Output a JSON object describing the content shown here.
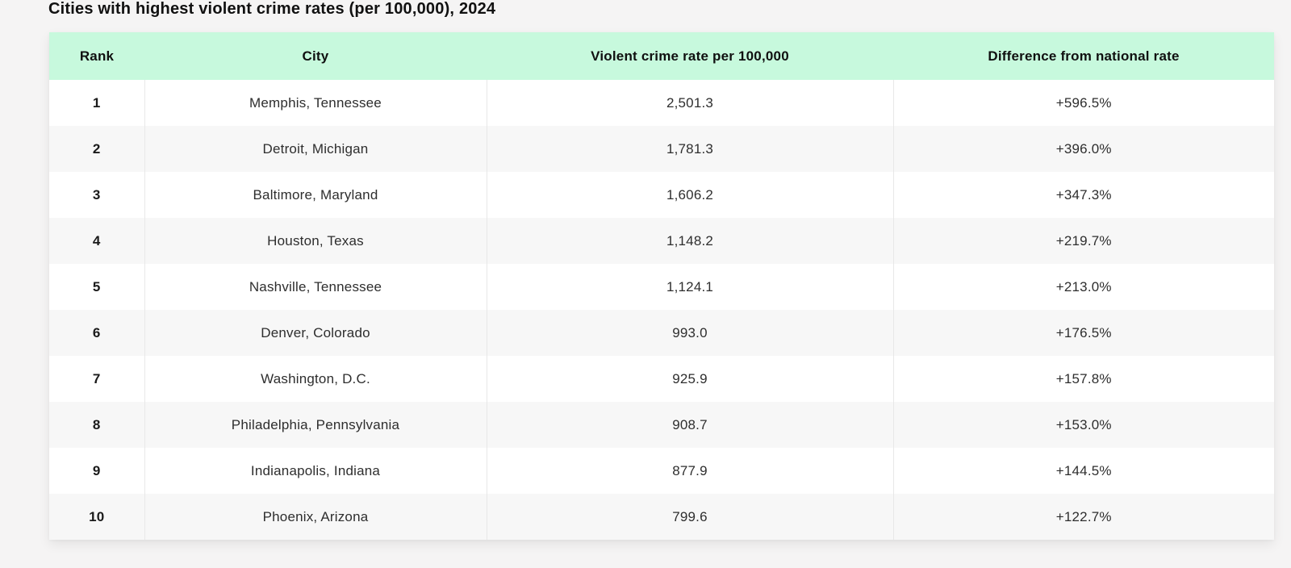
{
  "page": {
    "title": "Cities with highest violent crime rates (per 100,000), 2024"
  },
  "table": {
    "columns": [
      "Rank",
      "City",
      "Violent crime rate per 100,000",
      "Difference from national rate"
    ],
    "rows": [
      {
        "rank": "1",
        "city": "Memphis, Tennessee",
        "rate": "2,501.3",
        "diff": "+596.5%"
      },
      {
        "rank": "2",
        "city": "Detroit, Michigan",
        "rate": "1,781.3",
        "diff": "+396.0%"
      },
      {
        "rank": "3",
        "city": "Baltimore, Maryland",
        "rate": "1,606.2",
        "diff": "+347.3%"
      },
      {
        "rank": "4",
        "city": "Houston, Texas",
        "rate": "1,148.2",
        "diff": "+219.7%"
      },
      {
        "rank": "5",
        "city": "Nashville, Tennessee",
        "rate": "1,124.1",
        "diff": "+213.0%"
      },
      {
        "rank": "6",
        "city": "Denver, Colorado",
        "rate": "993.0",
        "diff": "+176.5%"
      },
      {
        "rank": "7",
        "city": "Washington, D.C.",
        "rate": "925.9",
        "diff": "+157.8%"
      },
      {
        "rank": "8",
        "city": "Philadelphia, Pennsylvania",
        "rate": "908.7",
        "diff": "+153.0%"
      },
      {
        "rank": "9",
        "city": "Indianapolis, Indiana",
        "rate": "877.9",
        "diff": "+144.5%"
      },
      {
        "rank": "10",
        "city": "Phoenix, Arizona",
        "rate": "799.6",
        "diff": "+122.7%"
      }
    ]
  },
  "colors": {
    "header_bg": "#c7f9dd",
    "row_even_bg": "#f7f7f7",
    "row_odd_bg": "#ffffff",
    "page_bg": "#f5f4f4",
    "divider": "#e8e8e8",
    "text": "#2e2e2e",
    "title_text": "#111111"
  },
  "chart_data": {
    "type": "table",
    "title": "Cities with highest violent crime rates (per 100,000), 2024",
    "columns": [
      "Rank",
      "City",
      "Violent crime rate per 100,000",
      "Difference from national rate"
    ],
    "rows": [
      [
        1,
        "Memphis, Tennessee",
        2501.3,
        "+596.5%"
      ],
      [
        2,
        "Detroit, Michigan",
        1781.3,
        "+396.0%"
      ],
      [
        3,
        "Baltimore, Maryland",
        1606.2,
        "+347.3%"
      ],
      [
        4,
        "Houston, Texas",
        1148.2,
        "+219.7%"
      ],
      [
        5,
        "Nashville, Tennessee",
        1124.1,
        "+213.0%"
      ],
      [
        6,
        "Denver, Colorado",
        993.0,
        "+176.5%"
      ],
      [
        7,
        "Washington, D.C.",
        925.9,
        "+157.8%"
      ],
      [
        8,
        "Philadelphia, Pennsylvania",
        908.7,
        "+153.0%"
      ],
      [
        9,
        "Indianapolis, Indiana",
        877.9,
        "+144.5%"
      ],
      [
        10,
        "Phoenix, Arizona",
        799.6,
        "+122.7%"
      ]
    ]
  }
}
